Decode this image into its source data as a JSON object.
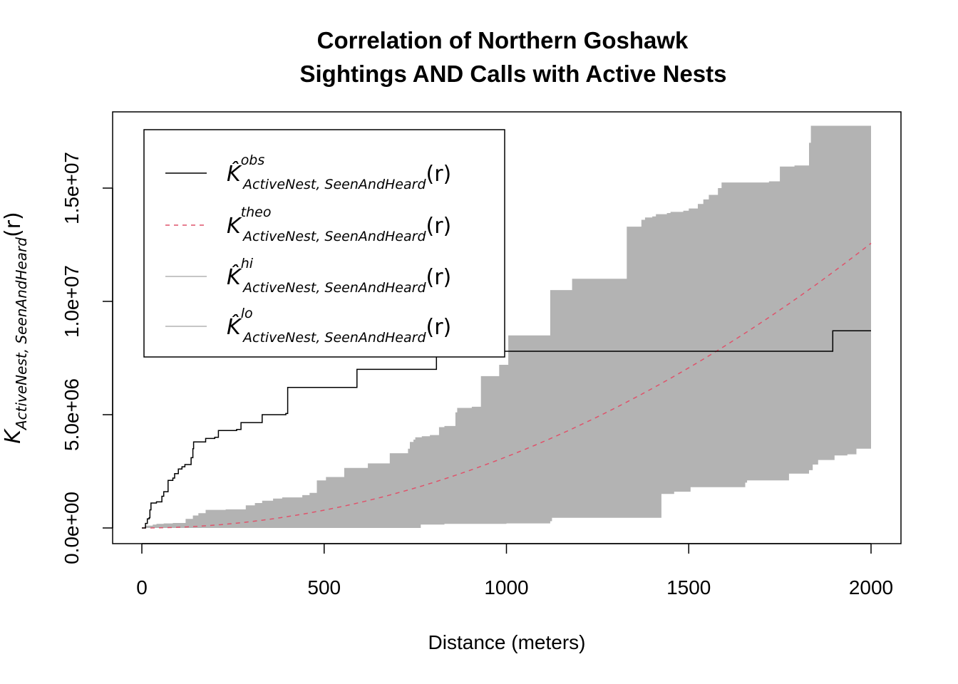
{
  "chart_data": {
    "type": "line",
    "title_line1": "Correlation of Northern Goshawk",
    "title_line2": "Sightings AND Calls with Active Nests",
    "xlabel": "Distance (meters)",
    "ylabel": {
      "base": "K",
      "subscript": "ActiveNest, SeenAndHeard",
      "arg": "(r)"
    },
    "xlim": [
      0,
      2000
    ],
    "ylim": [
      0,
      17500000
    ],
    "x_ticks": [
      0,
      500,
      1000,
      1500,
      2000
    ],
    "x_tick_labels": [
      "0",
      "500",
      "1000",
      "1500",
      "2000"
    ],
    "y_ticks": [
      0,
      5000000,
      10000000,
      15000000
    ],
    "y_tick_labels": [
      "0.0e+00",
      "5.0e+06",
      "1.0e+07",
      "1.5e+07"
    ],
    "legend_placement": "top-left",
    "legend": [
      {
        "symbol": "K̂",
        "superscript": "obs",
        "subscript": "ActiveNest, SeenAndHeard",
        "arg": "(r)",
        "color": "#000000",
        "dash": "solid"
      },
      {
        "symbol": "K",
        "superscript": "theo",
        "subscript": "ActiveNest, SeenAndHeard",
        "arg": "(r)",
        "color": "#DF536B",
        "dash": "dashed"
      },
      {
        "symbol": "K̂",
        "superscript": "hi",
        "subscript": "ActiveNest, SeenAndHeard",
        "arg": "(r)",
        "color": "#B3B3B3",
        "dash": "solid"
      },
      {
        "symbol": "K̂",
        "superscript": "lo",
        "subscript": "ActiveNest, SeenAndHeard",
        "arg": "(r)",
        "color": "#B3B3B3",
        "dash": "solid"
      }
    ],
    "colors": {
      "obs": "#000000",
      "theo": "#DF536B",
      "envelope": "#B3B3B3"
    },
    "series": [
      {
        "key": "obs",
        "step": true,
        "points": [
          [
            0,
            0
          ],
          [
            10,
            200000
          ],
          [
            15,
            400000
          ],
          [
            20,
            450000
          ],
          [
            22,
            800000
          ],
          [
            25,
            1100000
          ],
          [
            40,
            1150000
          ],
          [
            55,
            1400000
          ],
          [
            60,
            1600000
          ],
          [
            72,
            2100000
          ],
          [
            85,
            2200000
          ],
          [
            90,
            2400000
          ],
          [
            100,
            2600000
          ],
          [
            110,
            2700000
          ],
          [
            118,
            2800000
          ],
          [
            135,
            3100000
          ],
          [
            140,
            3500000
          ],
          [
            142,
            3800000
          ],
          [
            170,
            3800000
          ],
          [
            175,
            3950000
          ],
          [
            200,
            4000000
          ],
          [
            210,
            4300000
          ],
          [
            260,
            4350000
          ],
          [
            272,
            4650000
          ],
          [
            320,
            4650000
          ],
          [
            330,
            5000000
          ],
          [
            380,
            5000000
          ],
          [
            395,
            5050000
          ],
          [
            400,
            6200000
          ],
          [
            520,
            6200000
          ],
          [
            590,
            7000000
          ],
          [
            800,
            7000000
          ],
          [
            808,
            7800000
          ],
          [
            1160,
            7800000
          ],
          [
            1500,
            7800000
          ],
          [
            1890,
            7800000
          ],
          [
            1895,
            8700000
          ],
          [
            2000,
            8700000
          ]
        ]
      },
      {
        "key": "theo",
        "formula": "pi*r^2",
        "points": [
          [
            0,
            0
          ],
          [
            250,
            196350
          ],
          [
            500,
            785398
          ],
          [
            750,
            1767146
          ],
          [
            1000,
            3141593
          ],
          [
            1250,
            4908739
          ],
          [
            1500,
            7068583
          ],
          [
            1750,
            9621128
          ],
          [
            2000,
            12566371
          ]
        ]
      },
      {
        "key": "hi",
        "step": true,
        "points": [
          [
            0,
            0
          ],
          [
            8,
            100000
          ],
          [
            30,
            150000
          ],
          [
            40,
            180000
          ],
          [
            60,
            200000
          ],
          [
            85,
            220000
          ],
          [
            120,
            400000
          ],
          [
            140,
            550000
          ],
          [
            155,
            650000
          ],
          [
            175,
            800000
          ],
          [
            230,
            820000
          ],
          [
            285,
            1000000
          ],
          [
            310,
            1100000
          ],
          [
            330,
            1200000
          ],
          [
            360,
            1300000
          ],
          [
            385,
            1350000
          ],
          [
            440,
            1450000
          ],
          [
            460,
            1550000
          ],
          [
            480,
            2100000
          ],
          [
            505,
            2250000
          ],
          [
            555,
            2650000
          ],
          [
            620,
            2850000
          ],
          [
            680,
            3300000
          ],
          [
            700,
            3300000
          ],
          [
            730,
            3500000
          ],
          [
            735,
            3800000
          ],
          [
            745,
            3900000
          ],
          [
            750,
            4000000
          ],
          [
            768,
            4050000
          ],
          [
            790,
            4100000
          ],
          [
            800,
            4100000
          ],
          [
            815,
            4450000
          ],
          [
            830,
            4500000
          ],
          [
            855,
            4500000
          ],
          [
            860,
            5100000
          ],
          [
            865,
            5300000
          ],
          [
            900,
            5300000
          ],
          [
            905,
            5350000
          ],
          [
            930,
            6700000
          ],
          [
            980,
            7200000
          ],
          [
            1000,
            7200000
          ],
          [
            1005,
            8500000
          ],
          [
            1085,
            8500000
          ],
          [
            1120,
            10500000
          ],
          [
            1160,
            10500000
          ],
          [
            1180,
            11000000
          ],
          [
            1310,
            11000000
          ],
          [
            1330,
            13300000
          ],
          [
            1370,
            13600000
          ],
          [
            1380,
            13700000
          ],
          [
            1400,
            13750000
          ],
          [
            1410,
            13850000
          ],
          [
            1440,
            13900000
          ],
          [
            1450,
            13950000
          ],
          [
            1485,
            14000000
          ],
          [
            1500,
            14100000
          ],
          [
            1525,
            14300000
          ],
          [
            1540,
            14500000
          ],
          [
            1555,
            14700000
          ],
          [
            1580,
            15000000
          ],
          [
            1590,
            15250000
          ],
          [
            1700,
            15250000
          ],
          [
            1720,
            15300000
          ],
          [
            1750,
            15950000
          ],
          [
            1790,
            16000000
          ],
          [
            1830,
            17000000
          ],
          [
            1835,
            17750000
          ],
          [
            2000,
            17750000
          ]
        ]
      },
      {
        "key": "lo",
        "step": true,
        "points": [
          [
            0,
            0
          ],
          [
            760,
            0
          ],
          [
            765,
            150000
          ],
          [
            830,
            180000
          ],
          [
            1000,
            200000
          ],
          [
            1120,
            300000
          ],
          [
            1125,
            450000
          ],
          [
            1420,
            450000
          ],
          [
            1425,
            1500000
          ],
          [
            1460,
            1600000
          ],
          [
            1505,
            1800000
          ],
          [
            1655,
            2000000
          ],
          [
            1660,
            2100000
          ],
          [
            1770,
            2100000
          ],
          [
            1775,
            2400000
          ],
          [
            1830,
            2550000
          ],
          [
            1840,
            2800000
          ],
          [
            1855,
            3000000
          ],
          [
            1900,
            3200000
          ],
          [
            1935,
            3250000
          ],
          [
            1960,
            3500000
          ],
          [
            2000,
            3500000
          ]
        ]
      }
    ]
  }
}
